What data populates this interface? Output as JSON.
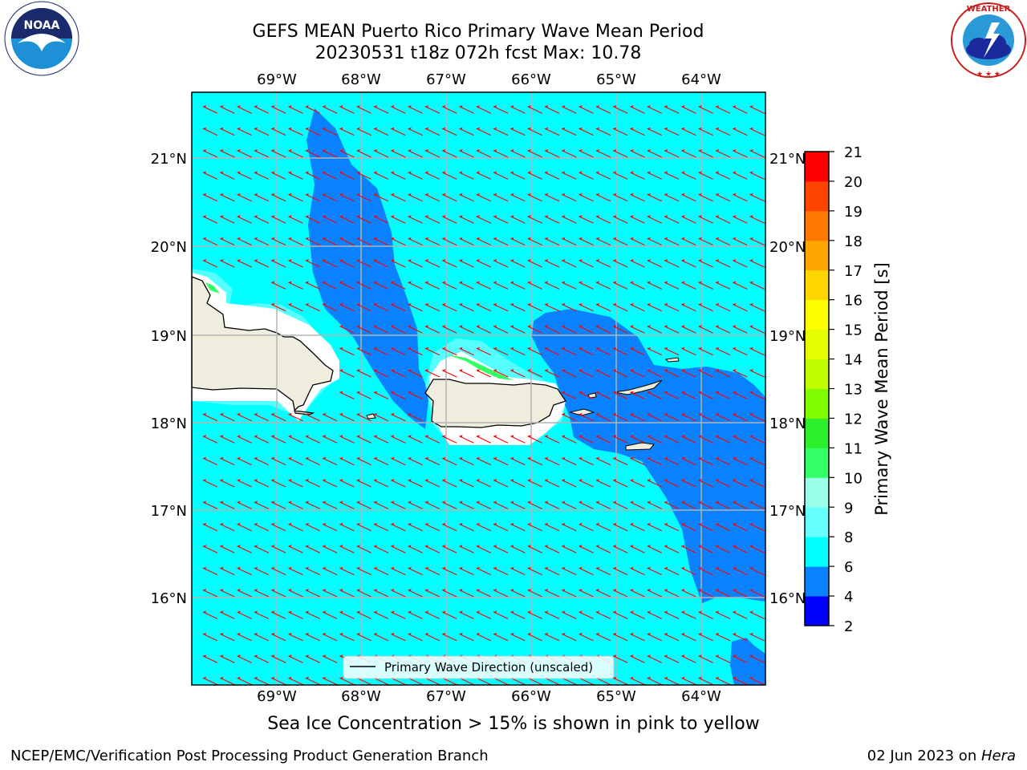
{
  "title_line1": "GEFS MEAN Puerto Rico Primary Wave Mean Period",
  "title_line2": "20230531 t18z 072h fcst   Max: 10.78",
  "logos": {
    "left": "NOAA",
    "right": "NATIONAL WEATHER SERVICE"
  },
  "map": {
    "lon_labels": [
      "69°W",
      "68°W",
      "67°W",
      "66°W",
      "65°W",
      "64°W"
    ],
    "lat_labels": [
      "21°N",
      "20°N",
      "19°N",
      "18°N",
      "17°N",
      "16°N"
    ],
    "legend_label": "Primary Wave Direction (unscaled)",
    "colors": {
      "ocean_main": "#00ffff",
      "ocean_deep": "#0a82ff",
      "land": "#efedde",
      "arrow": "#ff0000",
      "grid": "#b4b4b4"
    }
  },
  "colorbar": {
    "label": "Primary Wave Mean Period [s]",
    "ticks": [
      "2",
      "4",
      "6",
      "8",
      "9",
      "10",
      "11",
      "12",
      "13",
      "14",
      "15",
      "16",
      "17",
      "18",
      "19",
      "20",
      "21"
    ],
    "colors": [
      "#0000ff",
      "#0a82ff",
      "#00ffff",
      "#66ffff",
      "#99ffe6",
      "#33ff66",
      "#2df02d",
      "#80ff00",
      "#bfff00",
      "#e6ff00",
      "#ffff00",
      "#ffd700",
      "#ffa500",
      "#ff7800",
      "#ff4600",
      "#ff0000"
    ]
  },
  "sea_ice_note": "Sea Ice Concentration > 15% is shown in pink to yellow",
  "footer": {
    "left": "NCEP/EMC/Verification Post Processing Product Generation Branch",
    "right_date": "02 Jun 2023 on ",
    "right_host": "Hera"
  }
}
